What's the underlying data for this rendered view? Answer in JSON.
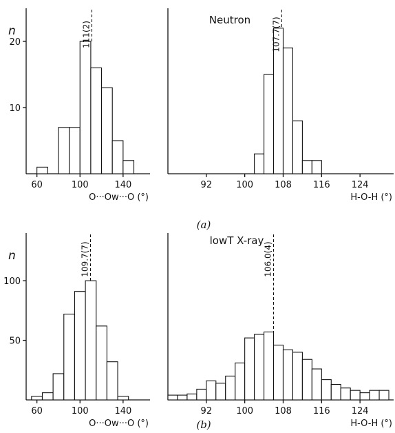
{
  "panels": [
    {
      "id": "a",
      "caption": "(a)",
      "title": "Neutron"
    },
    {
      "id": "b",
      "caption": "(b)",
      "title": "lowT X-ray"
    }
  ],
  "chart_data": [
    {
      "type": "bar",
      "panel": "a",
      "ylabel": "n",
      "xlabel": "O···Ow···O (°)",
      "xlim": [
        50,
        165
      ],
      "ylim": [
        0,
        25
      ],
      "xticks": [
        60,
        100,
        140
      ],
      "yticks": [
        10,
        20
      ],
      "bin_width": 10,
      "bins": [
        [
          60,
          1
        ],
        [
          70,
          0
        ],
        [
          80,
          7
        ],
        [
          90,
          7
        ],
        [
          100,
          20
        ],
        [
          110,
          16
        ],
        [
          120,
          13
        ],
        [
          130,
          5
        ],
        [
          140,
          2
        ]
      ],
      "mean_line": {
        "x": 111,
        "label": "111(2)"
      }
    },
    {
      "type": "bar",
      "panel": "a",
      "xlabel": "H-O-H (°)",
      "xlim": [
        84,
        131
      ],
      "ylim": [
        0,
        25
      ],
      "xticks": [
        92,
        100,
        108,
        116,
        124
      ],
      "bin_width": 2,
      "bins": [
        [
          102,
          3
        ],
        [
          104,
          15
        ],
        [
          106,
          22
        ],
        [
          108,
          19
        ],
        [
          110,
          8
        ],
        [
          112,
          2
        ],
        [
          114,
          2
        ]
      ],
      "mean_line": {
        "x": 107.7,
        "label": "107.7(7)"
      }
    },
    {
      "type": "bar",
      "panel": "b",
      "ylabel": "n",
      "xlabel": "O···Ow···O (°)",
      "xlim": [
        50,
        165
      ],
      "ylim": [
        0,
        140
      ],
      "xticks": [
        60,
        100,
        140
      ],
      "yticks": [
        50,
        100
      ],
      "bin_width": 10,
      "bins": [
        [
          55,
          3
        ],
        [
          65,
          6
        ],
        [
          75,
          22
        ],
        [
          85,
          72
        ],
        [
          95,
          91
        ],
        [
          105,
          100
        ],
        [
          115,
          62
        ],
        [
          125,
          32
        ],
        [
          135,
          3
        ]
      ],
      "mean_line": {
        "x": 109.7,
        "label": "109.7(7)"
      }
    },
    {
      "type": "bar",
      "panel": "b",
      "xlabel": "H-O-H (°)",
      "xlim": [
        84,
        131
      ],
      "ylim": [
        0,
        140
      ],
      "xticks": [
        92,
        100,
        108,
        116,
        124
      ],
      "bin_width": 2,
      "bins": [
        [
          84,
          4
        ],
        [
          86,
          4
        ],
        [
          88,
          5
        ],
        [
          90,
          9
        ],
        [
          92,
          16
        ],
        [
          94,
          14
        ],
        [
          96,
          20
        ],
        [
          98,
          31
        ],
        [
          100,
          52
        ],
        [
          102,
          55
        ],
        [
          104,
          57
        ],
        [
          106,
          46
        ],
        [
          108,
          42
        ],
        [
          110,
          40
        ],
        [
          112,
          34
        ],
        [
          114,
          26
        ],
        [
          116,
          17
        ],
        [
          118,
          13
        ],
        [
          120,
          10
        ],
        [
          122,
          8
        ],
        [
          124,
          6
        ],
        [
          126,
          8
        ],
        [
          128,
          8
        ]
      ],
      "mean_line": {
        "x": 106.0,
        "label": "106.0(4)"
      }
    }
  ]
}
